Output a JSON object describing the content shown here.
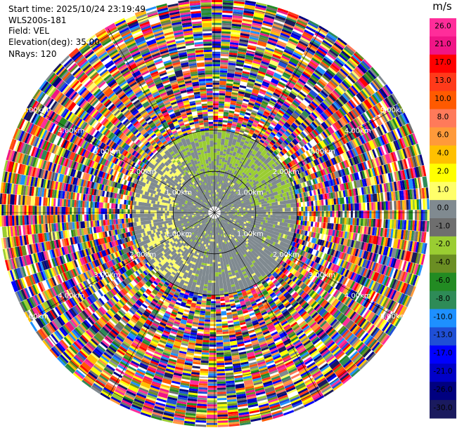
{
  "info": {
    "start_time": "Start time: 2025/10/24 23:19:49",
    "station": "WLS200s-181",
    "field": "Field: VEL",
    "elevation": "Elevation(deg): 35.00",
    "nrays": "NRays: 120"
  },
  "colorbar": {
    "unit": "m/s",
    "levels": [
      "26.0",
      "21.0",
      "17.0",
      "13.0",
      "10.0",
      "8.0",
      "6.0",
      "4.0",
      "2.0",
      "1.0",
      "0.0",
      "-1.0",
      "-2.0",
      "-4.0",
      "-6.0",
      "-8.0",
      "-10.0",
      "-13.0",
      "-17.0",
      "-21.0",
      "-26.0",
      "-30.0"
    ],
    "colors": [
      "#ff2d9a",
      "#f01586",
      "#ff0000",
      "#ff3a1a",
      "#ff5a00",
      "#ff7a5a",
      "#ff9a3a",
      "#ffc000",
      "#ffff00",
      "#ffff6a",
      "#808a90",
      "#6e6e6e",
      "#9acd32",
      "#6b8e23",
      "#228b22",
      "#2e8b57",
      "#1e90ff",
      "#1f4fd6",
      "#0000ff",
      "#0000c8",
      "#000080",
      "#1a1a5e"
    ]
  },
  "chart_data": {
    "type": "ppi",
    "field": "VEL",
    "unit": "m/s",
    "elevation_deg": 35.0,
    "nrays": 120,
    "range_rings_km": [
      1.0,
      2.0,
      3.0,
      4.0,
      5.0
    ],
    "ring_labels": [
      "1.00km",
      "2.00km",
      "3.00km",
      "4.00km",
      "5.00km"
    ],
    "clear_region_max_km": 2.0,
    "dominant_near_field_m_s": [
      0.0,
      -2.0,
      2.0
    ]
  }
}
